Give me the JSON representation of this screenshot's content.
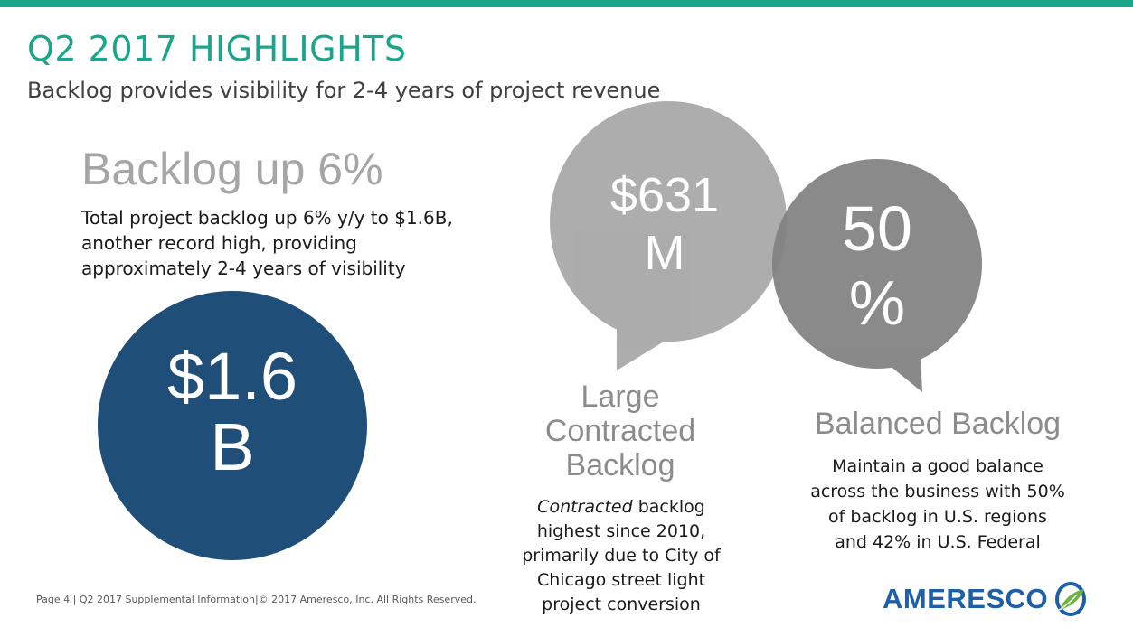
{
  "header": {
    "title": "Q2 2017 HIGHLIGHTS",
    "subtitle": "Backlog provides visibility for 2-4 years of project revenue"
  },
  "left": {
    "heading": "Backlog up 6%",
    "body_lines": [
      "Total project backlog up 6% y/y to $1.6B,",
      "another record high, providing",
      "approximately 2-4 years of visibility"
    ],
    "circle_value_lines": [
      "$1.6",
      "B"
    ]
  },
  "middle": {
    "bubble_value_lines": [
      "$631",
      "M"
    ],
    "heading_lines": [
      "Large",
      "Contracted",
      "Backlog"
    ],
    "body_first_italic": "Contracted",
    "body_first_rest": " backlog",
    "body_lines": [
      "highest since 2010,",
      "primarily due to City of",
      "Chicago street light",
      "project conversion"
    ]
  },
  "right": {
    "bubble_value_lines": [
      "50",
      "%"
    ],
    "heading": "Balanced Backlog",
    "body_lines": [
      "Maintain a good balance",
      "across the business with 50%",
      "of backlog in U.S. regions",
      "and 42% in U.S. Federal"
    ]
  },
  "footer": {
    "text": "Page 4 | Q2 2017 Supplemental Information|© 2017 Ameresco, Inc. All Rights Reserved."
  },
  "logo": {
    "name": "AMERESCO",
    "icon": "ameresco-leaf-logo-icon"
  },
  "colors": {
    "accent": "#1aa68a",
    "navy": "#1f4e79",
    "bubble_light": "#a6a6a6",
    "bubble_dark": "#8c8c8c",
    "logo_blue": "#1f5fa8",
    "logo_green": "#6cb33f"
  }
}
